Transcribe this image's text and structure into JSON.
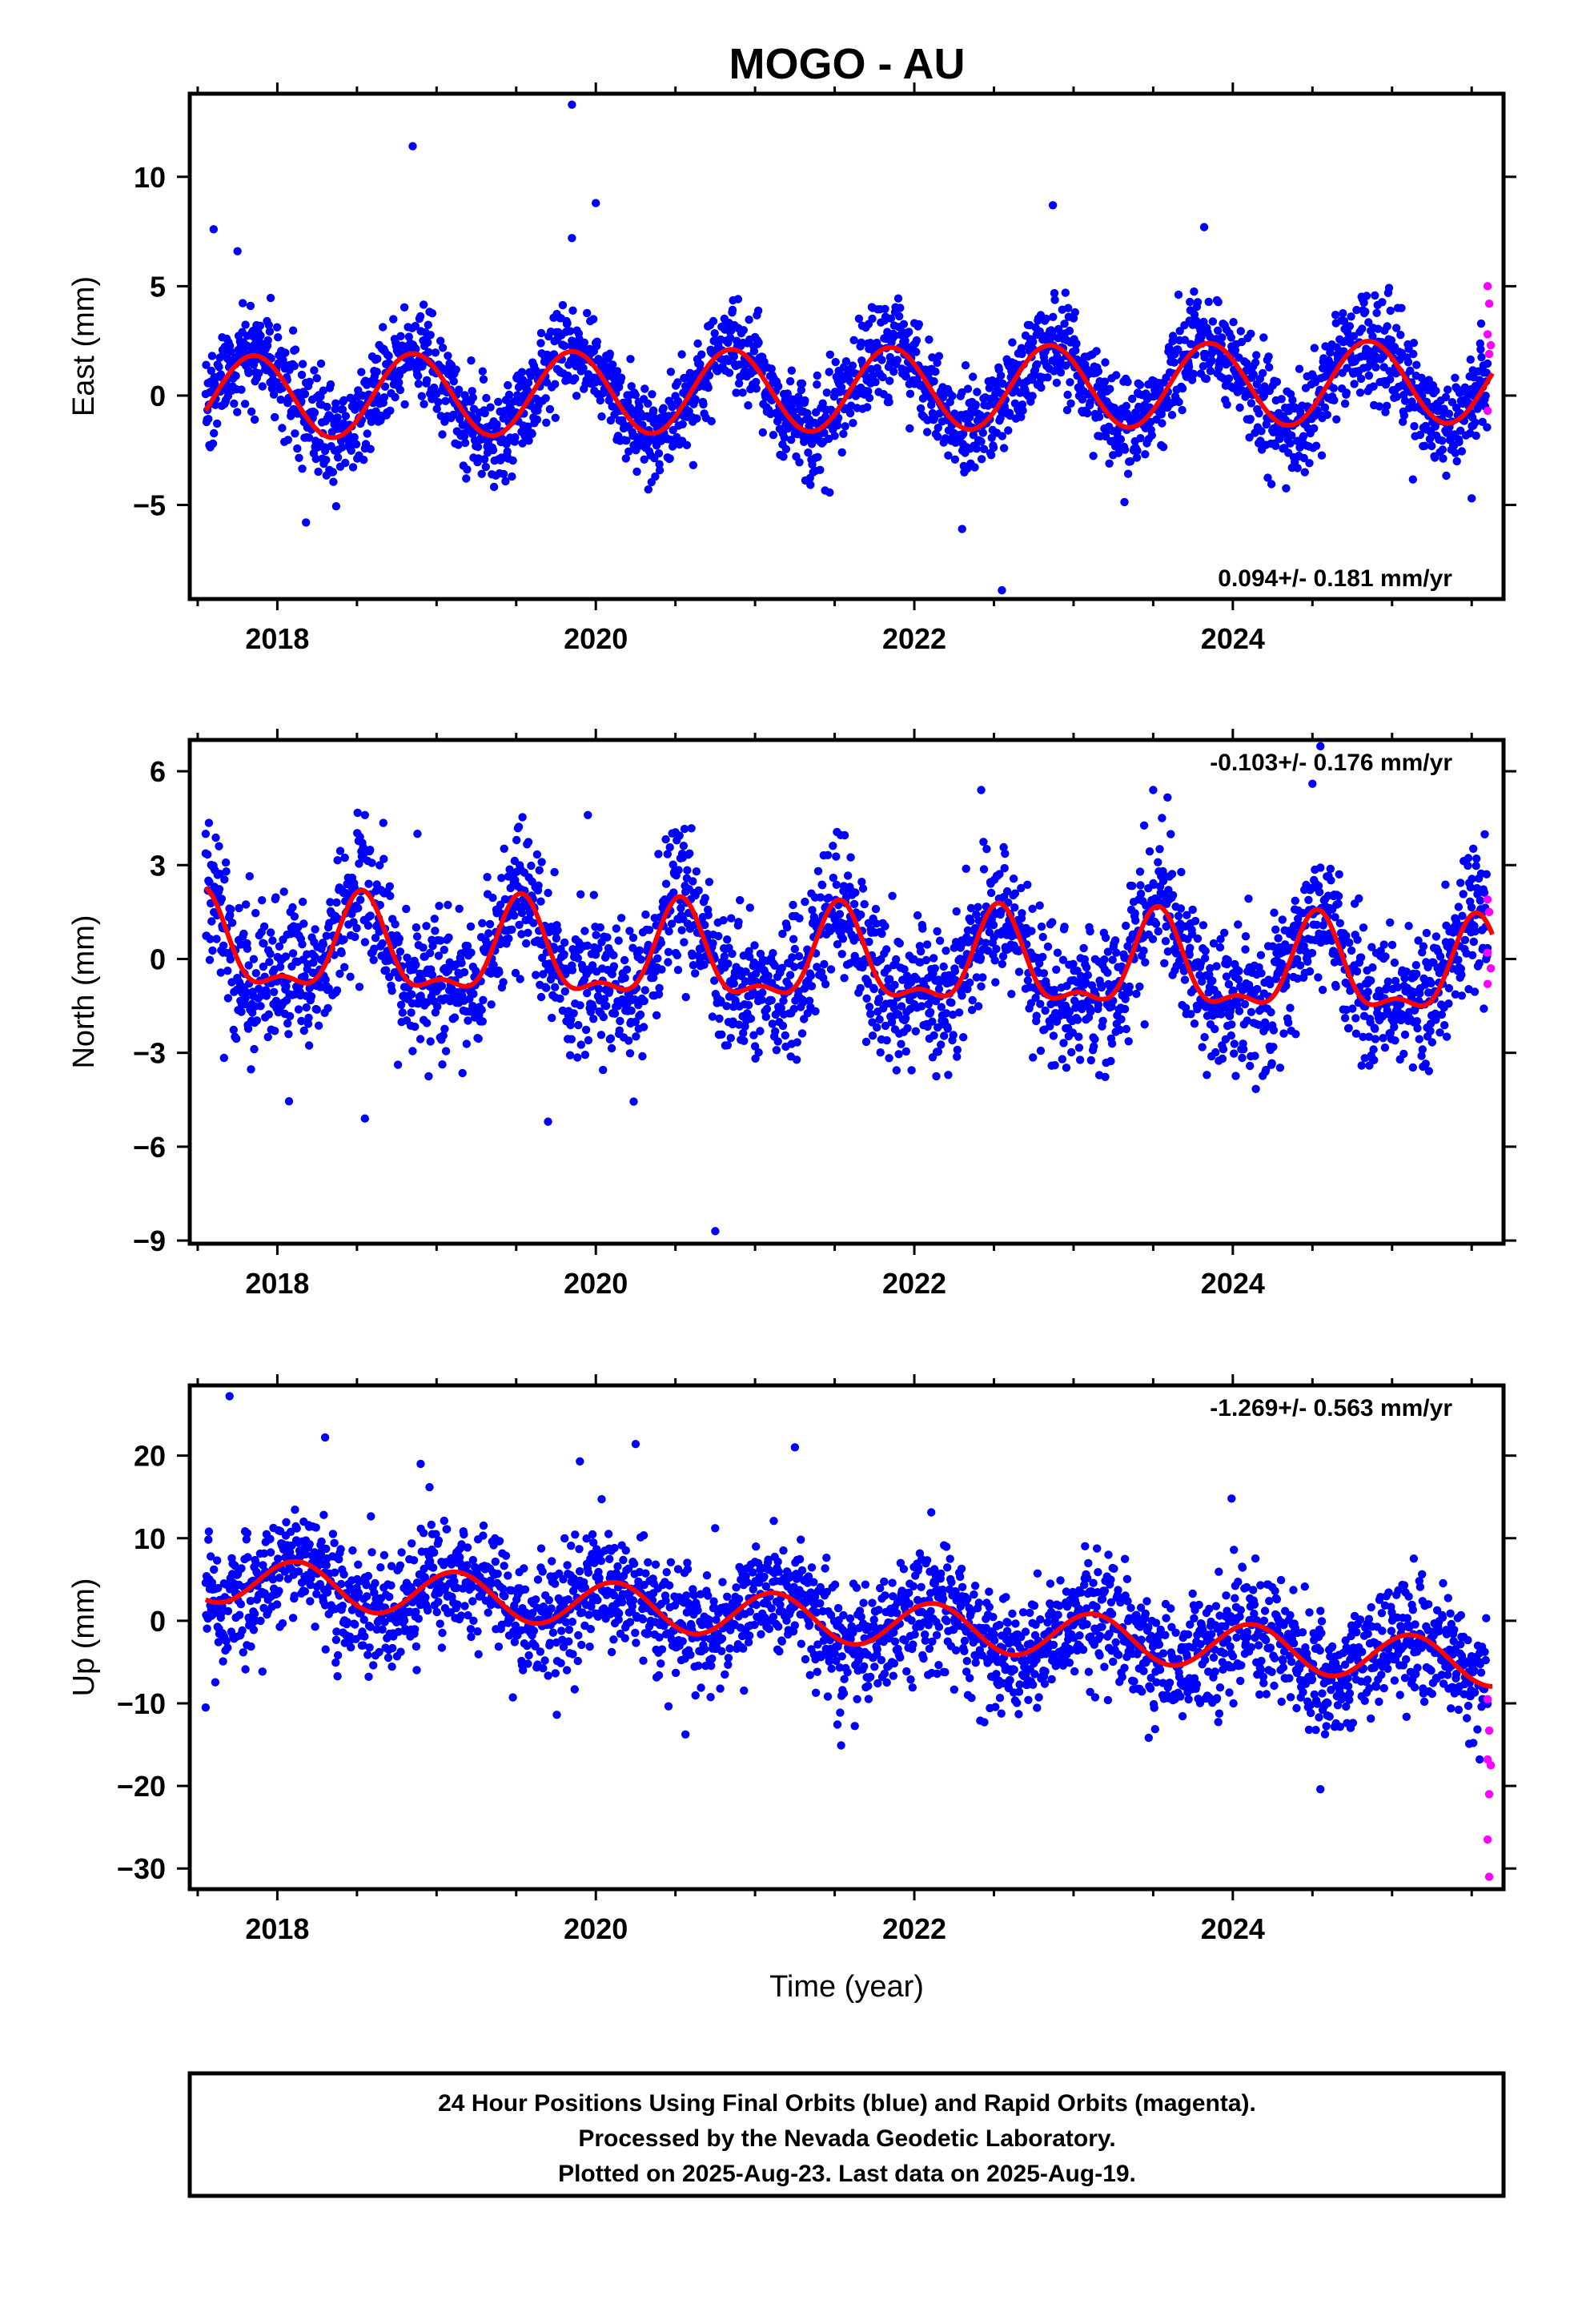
{
  "title": "MOGO - AU",
  "footer": {
    "lines": [
      "24 Hour Positions Using Final Orbits (blue) and Rapid Orbits (magenta).",
      "Processed by the Nevada Geodetic Laboratory.",
      "Plotted on 2025-Aug-23. Last data on 2025-Aug-19."
    ]
  },
  "colors": {
    "final_orbits": "#0000ff",
    "rapid_orbits": "#ff00ff",
    "model": "#ff0000",
    "frame": "#000000"
  },
  "chart_data": [
    {
      "type": "scatter",
      "component": "East",
      "ylabel": "East (mm)",
      "xlabel": "",
      "xlim": [
        2017.45,
        2025.7
      ],
      "ylim": [
        -9.3,
        13.8
      ],
      "xticks": [
        2018,
        2020,
        2022,
        2024
      ],
      "yticks": [
        -5,
        0,
        5,
        10
      ],
      "ytick_labels": [
        "−5",
        "0",
        "5",
        "10"
      ],
      "rate_label": "0.094+/- 0.181 mm/yr",
      "rate_position": "bottom-right",
      "data_start": 2017.55,
      "data_end": 2025.63,
      "model": {
        "trend_mm_per_yr": 0.094,
        "offset": -0.1,
        "annual_amplitude": 1.9,
        "annual_phase_peak": 0.85,
        "semiannual_amplitude": 0.0,
        "semiannual_phase_peak": 0.0,
        "scatter": 1.1
      },
      "outliers": [
        [
          2017.6,
          7.6
        ],
        [
          2017.75,
          6.6
        ],
        [
          2018.85,
          11.4
        ],
        [
          2019.85,
          13.3
        ],
        [
          2019.85,
          7.2
        ],
        [
          2020.0,
          8.8
        ],
        [
          2022.87,
          8.7
        ],
        [
          2023.82,
          7.7
        ],
        [
          2022.55,
          -8.9
        ],
        [
          2018.18,
          -5.8
        ],
        [
          2022.3,
          -6.1
        ],
        [
          2025.5,
          -4.7
        ]
      ],
      "rapid_points": [
        [
          2025.6,
          5.0
        ],
        [
          2025.61,
          4.2
        ],
        [
          2025.6,
          2.8
        ],
        [
          2025.62,
          2.3
        ],
        [
          2025.61,
          1.9
        ],
        [
          2025.6,
          -0.7
        ]
      ]
    },
    {
      "type": "scatter",
      "component": "North",
      "ylabel": "North (mm)",
      "xlabel": "",
      "xlim": [
        2017.45,
        2025.7
      ],
      "ylim": [
        -9.1,
        7.0
      ],
      "xticks": [
        2018,
        2020,
        2022,
        2024
      ],
      "yticks": [
        -9,
        -6,
        -3,
        0,
        3,
        6
      ],
      "ytick_labels": [
        "−9",
        "−6",
        "−3",
        "0",
        "3",
        "6"
      ],
      "rate_label": "-0.103+/- 0.176 mm/yr",
      "rate_position": "top-right",
      "data_start": 2017.55,
      "data_end": 2025.63,
      "model": {
        "trend_mm_per_yr": -0.103,
        "offset": 0.3,
        "annual_amplitude": 1.4,
        "annual_phase_peak": 0.53,
        "semiannual_amplitude": 0.6,
        "semiannual_phase_peak": 0.03,
        "scatter": 1.1
      },
      "outliers": [
        [
          2020.75,
          -8.7
        ],
        [
          2018.55,
          -5.1
        ],
        [
          2019.7,
          -5.2
        ],
        [
          2024.55,
          6.8
        ],
        [
          2024.5,
          5.6
        ],
        [
          2023.5,
          5.4
        ],
        [
          2022.42,
          5.4
        ],
        [
          2019.95,
          4.6
        ],
        [
          2018.55,
          4.6
        ],
        [
          2018.88,
          4.0
        ],
        [
          2017.55,
          4.0
        ]
      ],
      "rapid_points": [
        [
          2025.6,
          1.9
        ],
        [
          2025.61,
          1.5
        ],
        [
          2025.6,
          0.2
        ],
        [
          2025.62,
          -0.3
        ],
        [
          2025.6,
          -0.8
        ]
      ]
    },
    {
      "type": "scatter",
      "component": "Up",
      "ylabel": "Up (mm)",
      "xlabel": "Time (year)",
      "xlim": [
        2017.45,
        2025.7
      ],
      "ylim": [
        -32.5,
        28.5
      ],
      "xticks": [
        2018,
        2020,
        2022,
        2024
      ],
      "yticks": [
        -30,
        -20,
        -10,
        0,
        10,
        20
      ],
      "ytick_labels": [
        "−30",
        "−20",
        "−10",
        "0",
        "10",
        "20"
      ],
      "rate_label": "-1.269+/- 0.563 mm/yr",
      "rate_position": "top-right",
      "data_start": 2017.55,
      "data_end": 2025.63,
      "model": {
        "trend_mm_per_yr": -1.269,
        "offset": 5.1,
        "annual_amplitude": 2.8,
        "annual_phase_peak": 0.12,
        "semiannual_amplitude": 0.0,
        "semiannual_phase_peak": 0.0,
        "scatter": 3.6
      },
      "outliers": [
        [
          2017.7,
          27.2
        ],
        [
          2018.3,
          22.2
        ],
        [
          2020.25,
          21.4
        ],
        [
          2021.25,
          21.0
        ],
        [
          2017.55,
          -10.5
        ],
        [
          2024.55,
          -20.4
        ],
        [
          2025.55,
          -16.8
        ],
        [
          2019.9,
          19.3
        ],
        [
          2018.9,
          19.0
        ]
      ],
      "rapid_points": [
        [
          2025.6,
          -9.5
        ],
        [
          2025.61,
          -13.3
        ],
        [
          2025.6,
          -16.8
        ],
        [
          2025.62,
          -17.5
        ],
        [
          2025.61,
          -21.0
        ],
        [
          2025.6,
          -26.5
        ],
        [
          2025.61,
          -31.0
        ]
      ]
    }
  ]
}
